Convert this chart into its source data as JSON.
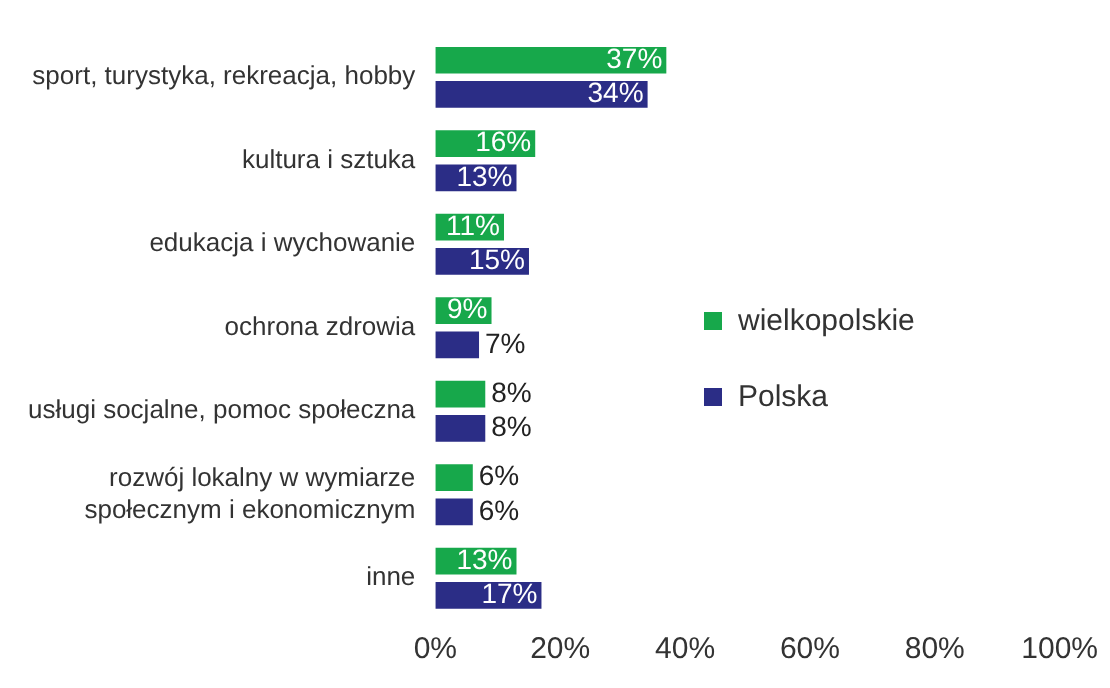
{
  "chart_data": {
    "type": "bar",
    "orientation": "horizontal",
    "categories": [
      "sport, turystyka, rekreacja, hobby",
      "kultura i sztuka",
      "edukacja i wychowanie",
      "ochrona zdrowia",
      "usługi socjalne, pomoc społeczna",
      "rozwój lokalny w wymiarze społecznym i ekonomicznym",
      "inne"
    ],
    "series": [
      {
        "name": "wielkopolskie",
        "color": "#17a84b",
        "values": [
          37,
          16,
          11,
          9,
          8,
          6,
          13
        ],
        "value_labels": [
          "37%",
          "16%",
          "11%",
          "9%",
          "8%",
          "6%",
          "13%"
        ]
      },
      {
        "name": "Polska",
        "color": "#2b2d86",
        "values": [
          34,
          13,
          15,
          7,
          8,
          6,
          17
        ],
        "value_labels": [
          "34%",
          "13%",
          "15%",
          "7%",
          "8%",
          "6%",
          "17%"
        ]
      }
    ],
    "xlim": [
      0,
      100
    ],
    "xticks": [
      {
        "value": 0,
        "label": "0%"
      },
      {
        "value": 20,
        "label": "20%"
      },
      {
        "value": 40,
        "label": "40%"
      },
      {
        "value": 60,
        "label": "60%"
      },
      {
        "value": 80,
        "label": "80%"
      },
      {
        "value": 100,
        "label": "100%"
      }
    ],
    "grid": false,
    "legend": "right"
  }
}
